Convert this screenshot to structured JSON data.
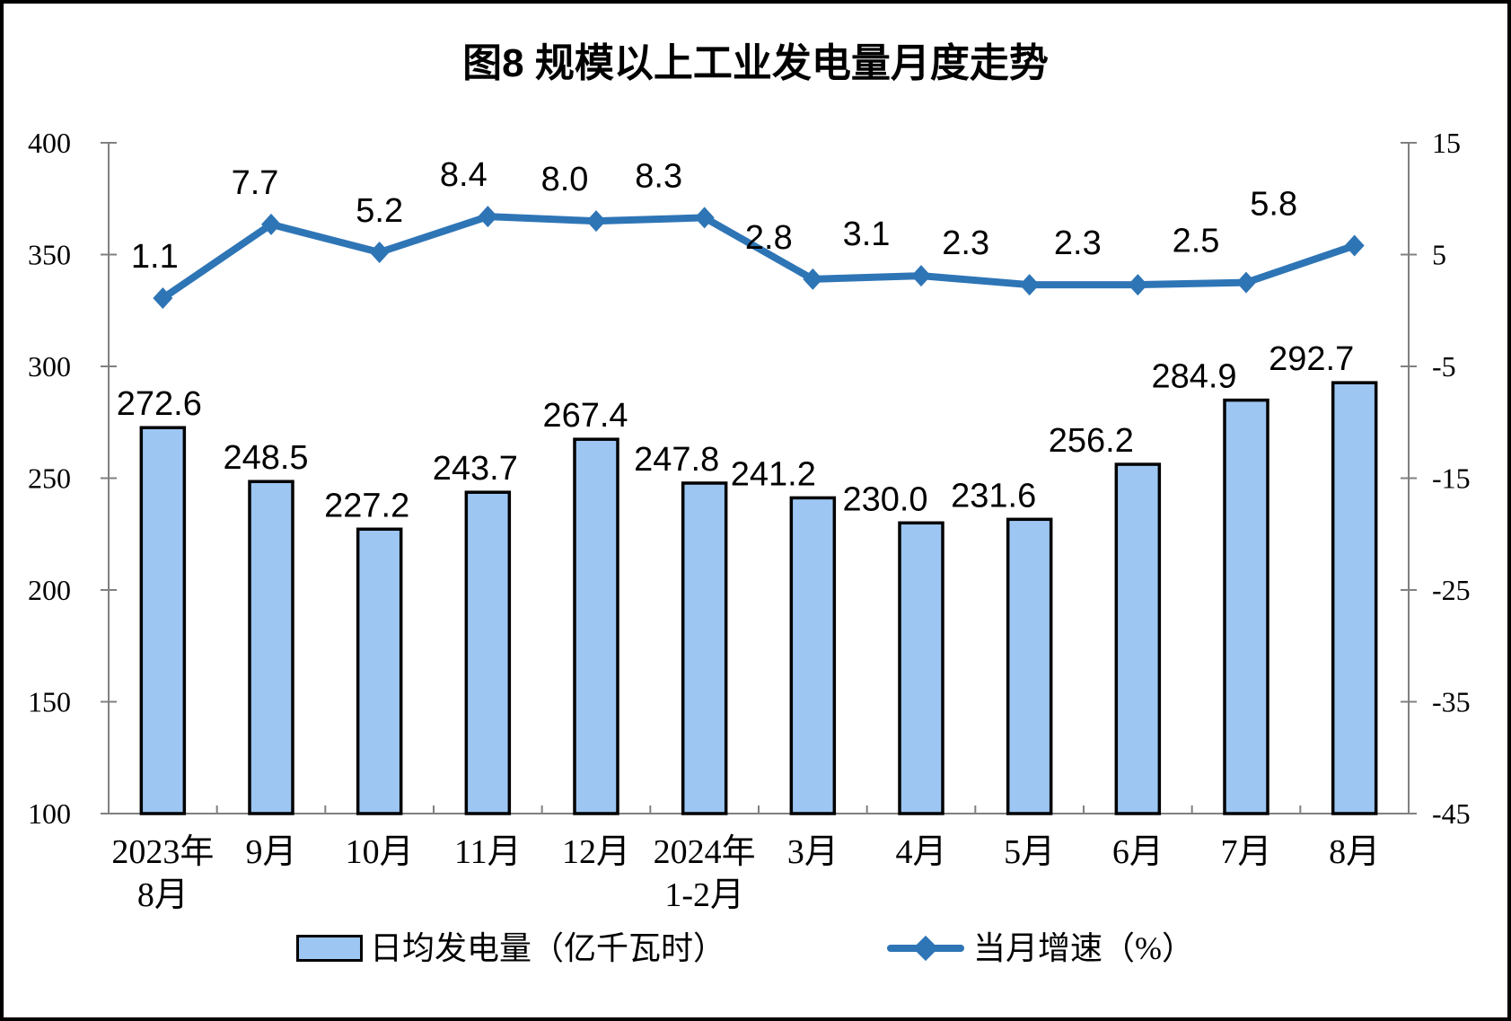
{
  "title": "图8 规模以上工业发电量月度走势",
  "chart_data": {
    "type": "combo",
    "subtype": "bar+line, dual axis",
    "categories_lines": [
      [
        "2023年",
        "8月"
      ],
      [
        "9月"
      ],
      [
        "10月"
      ],
      [
        "11月"
      ],
      [
        "12月"
      ],
      [
        "2024年",
        "1-2月"
      ],
      [
        "3月"
      ],
      [
        "4月"
      ],
      [
        "5月"
      ],
      [
        "6月"
      ],
      [
        "7月"
      ],
      [
        "8月"
      ]
    ],
    "series": [
      {
        "name": "日均发电量（亿千瓦时）",
        "type": "bar",
        "axis": "left",
        "values": [
          272.6,
          248.5,
          227.2,
          243.7,
          267.4,
          247.8,
          241.2,
          230.0,
          231.6,
          256.2,
          284.9,
          292.7
        ],
        "labels": [
          "272.6",
          "248.5",
          "227.2",
          "243.7",
          "267.4",
          "247.8",
          "241.2",
          "230.0",
          "231.6",
          "256.2",
          "284.9",
          "292.7"
        ]
      },
      {
        "name": "当月增速（%）",
        "type": "line",
        "axis": "right",
        "values": [
          1.1,
          7.7,
          5.2,
          8.4,
          8.0,
          8.3,
          2.8,
          3.1,
          2.3,
          2.3,
          2.5,
          5.8
        ],
        "labels": [
          "1.1",
          "7.7",
          "5.2",
          "8.4",
          "8.0",
          "8.3",
          "2.8",
          "3.1",
          "2.3",
          "2.3",
          "2.5",
          "5.8"
        ]
      }
    ],
    "left_axis": {
      "min": 100,
      "max": 400,
      "tick_labels": [
        "400",
        "350",
        "300",
        "250",
        "200",
        "150",
        "100"
      ]
    },
    "right_axis": {
      "min": -45,
      "max": 15,
      "tick_labels": [
        "15",
        "5",
        "-5",
        "-15",
        "-25",
        "-35",
        "-45"
      ]
    },
    "colors": {
      "bar_fill": "#9DC6F2",
      "bar_stroke": "#000000",
      "line": "#2E75B6",
      "axis": "#808080",
      "text": "#000000"
    },
    "grid": false,
    "legend_position": "bottom"
  }
}
